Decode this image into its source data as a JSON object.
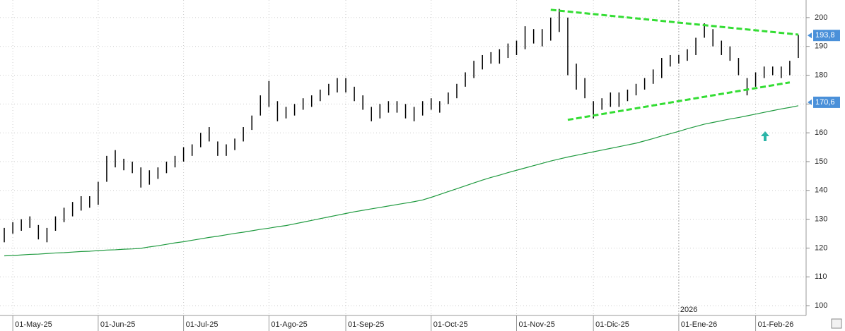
{
  "chart_data": {
    "type": "ohlc",
    "categories": [
      null,
      "01-May-25",
      null,
      null,
      null,
      null,
      null,
      null,
      null,
      null,
      null,
      "01-Jun-25",
      null,
      null,
      null,
      null,
      null,
      null,
      null,
      null,
      null,
      "01-Jul-25",
      null,
      null,
      null,
      null,
      null,
      null,
      null,
      null,
      null,
      "01-Ago-25",
      null,
      null,
      null,
      null,
      null,
      null,
      null,
      null,
      "01-Sep-25",
      null,
      null,
      null,
      null,
      null,
      null,
      null,
      null,
      null,
      "01-Oct-25",
      null,
      null,
      null,
      null,
      null,
      null,
      null,
      null,
      null,
      "01-Nov-25",
      null,
      null,
      null,
      null,
      null,
      null,
      null,
      null,
      "01-Dic-25",
      null,
      null,
      null,
      null,
      null,
      null,
      null,
      null,
      null,
      "01-Ene-26",
      null,
      null,
      null,
      null,
      null,
      null,
      null,
      null,
      "01-Feb-26",
      null,
      null,
      null,
      null,
      null
    ],
    "high": [
      127,
      129,
      130,
      131,
      128,
      127,
      131,
      134,
      136,
      138,
      138,
      143,
      152,
      154,
      151,
      150,
      148,
      147,
      148,
      150,
      152,
      155,
      156,
      160,
      162,
      157,
      156,
      158,
      162,
      166,
      173,
      178,
      171,
      169,
      170,
      172,
      173,
      175,
      177,
      179,
      179,
      176,
      173,
      169,
      170,
      171,
      171,
      170,
      169,
      171,
      172,
      171,
      174,
      177,
      181,
      185,
      187,
      188,
      189,
      191,
      192,
      197,
      196,
      196,
      200,
      203,
      200,
      184,
      179,
      171,
      172,
      174,
      174,
      175,
      177,
      179,
      182,
      186,
      187,
      187,
      189,
      193,
      198,
      196,
      192,
      190,
      186,
      179,
      181,
      183,
      183,
      183,
      185,
      194
    ],
    "low": [
      122,
      125,
      126,
      127,
      123,
      122,
      126,
      129,
      131,
      133,
      134,
      135,
      143,
      148,
      147,
      146,
      141,
      142,
      144,
      146,
      148,
      150,
      152,
      155,
      157,
      152,
      152,
      154,
      157,
      161,
      166,
      169,
      164,
      165,
      166,
      168,
      169,
      171,
      173,
      174,
      174,
      171,
      168,
      164,
      165,
      167,
      167,
      165,
      164,
      166,
      168,
      167,
      170,
      172,
      176,
      179,
      182,
      184,
      184,
      186,
      187,
      189,
      191,
      190,
      192,
      195,
      180,
      175,
      172,
      165,
      168,
      169,
      169,
      171,
      173,
      175,
      177,
      179,
      183,
      184,
      185,
      187,
      193,
      190,
      187,
      185,
      180,
      173,
      176,
      179,
      180,
      179,
      180,
      186
    ],
    "bar_color": "#000000",
    "ma": {
      "color": "#1f9a3f",
      "values": [
        117.3,
        117.4,
        117.6,
        117.8,
        117.9,
        118.1,
        118.3,
        118.4,
        118.6,
        118.8,
        118.9,
        119.1,
        119.3,
        119.4,
        119.6,
        119.7,
        119.9,
        120.4,
        120.8,
        121.3,
        121.8,
        122.2,
        122.7,
        123.2,
        123.7,
        124.1,
        124.6,
        125.1,
        125.5,
        126.0,
        126.5,
        126.9,
        127.4,
        127.8,
        128.4,
        129.0,
        129.6,
        130.2,
        130.8,
        131.4,
        132.0,
        132.6,
        133.1,
        133.6,
        134.1,
        134.6,
        135.1,
        135.6,
        136.1,
        136.7,
        137.6,
        138.6,
        139.6,
        140.6,
        141.6,
        142.6,
        143.6,
        144.5,
        145.3,
        146.2,
        147.0,
        147.8,
        148.6,
        149.4,
        150.2,
        150.9,
        151.6,
        152.2,
        152.8,
        153.4,
        154.0,
        154.6,
        155.2,
        155.8,
        156.4,
        157.2,
        158.0,
        158.9,
        159.7,
        160.5,
        161.4,
        162.2,
        163.0,
        163.6,
        164.2,
        164.8,
        165.3,
        165.9,
        166.5,
        167.1,
        167.7,
        168.3,
        168.8,
        169.4
      ]
    },
    "trendlines": [
      {
        "color": "#33dd33",
        "start": 64,
        "end": 93,
        "values": [
          202.7,
          194.1
        ]
      },
      {
        "color": "#33dd33",
        "start": 66,
        "end": 92,
        "values": [
          164.5,
          177.5
        ]
      }
    ],
    "price_labels": [
      {
        "value": 193.8,
        "label": "193,8"
      },
      {
        "value": 170.6,
        "label": "170,6"
      }
    ],
    "year_marker": {
      "index": 79,
      "label": "2026"
    },
    "ylim": [
      96.6,
      206.1
    ],
    "yticks": [
      100,
      110,
      120,
      130,
      140,
      150,
      160,
      170,
      180,
      190,
      200
    ],
    "grid": true
  }
}
